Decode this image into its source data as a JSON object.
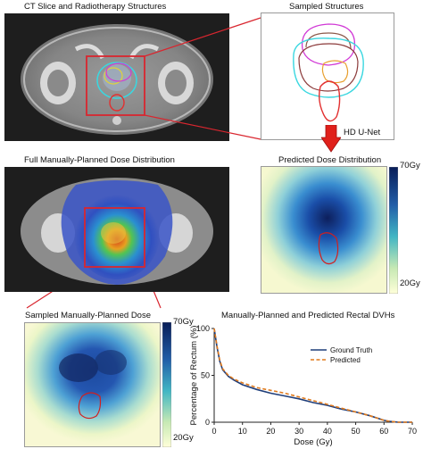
{
  "panels": {
    "ct_title": "CT Slice and Radiotherapy Structures",
    "sampled_title": "Sampled Structures",
    "full_dose_title": "Full Manually-Planned Dose Distribution",
    "predicted_title": "Predicted Dose Distribution",
    "sampled_dose_title": "Sampled Manually-Planned Dose",
    "dvh_title": "Manually-Planned and Predicted Rectal DVHs"
  },
  "arrow": {
    "label": "HD U-Net",
    "color": "#e0201b"
  },
  "colorbar_top": {
    "max": "70Gy",
    "min": "20Gy"
  },
  "colorbar_bottom": {
    "max": "70Gy",
    "min": "20Gy"
  },
  "colors": {
    "highlight_box": "#d9262f",
    "ground_truth": "#1f3e7a",
    "predicted": "#e07a1d",
    "rectum_contour": "#d11f1f"
  },
  "chart_data": {
    "type": "line",
    "title": "Manually-Planned and Predicted Rectal DVHs",
    "xlabel": "Dose (Gy)",
    "ylabel": "Percentage of Rectum (%)",
    "xlim": [
      0,
      70
    ],
    "ylim": [
      0,
      100
    ],
    "xticks": [
      "0",
      "10",
      "20",
      "30",
      "40",
      "50",
      "60",
      "70"
    ],
    "yticks": [
      "0",
      "50",
      "100"
    ],
    "legend_position": "top-right",
    "series": [
      {
        "name": "Ground Truth",
        "style": "solid",
        "x": [
          0,
          1,
          2,
          3,
          5,
          7,
          10,
          15,
          20,
          25,
          30,
          35,
          40,
          45,
          50,
          55,
          58,
          60,
          62,
          65,
          70
        ],
        "y": [
          100,
          80,
          65,
          56,
          49,
          45,
          40,
          35,
          31,
          28,
          25,
          21,
          18,
          14,
          11,
          7,
          4,
          2,
          1,
          0,
          0
        ]
      },
      {
        "name": "Predicted",
        "style": "dashed",
        "x": [
          0,
          1,
          2,
          3,
          5,
          7,
          10,
          15,
          20,
          25,
          30,
          35,
          40,
          45,
          50,
          55,
          58,
          60,
          62,
          65,
          70
        ],
        "y": [
          100,
          81,
          66,
          57,
          50,
          46,
          42,
          37,
          34,
          31,
          27,
          23,
          19,
          15,
          11,
          7,
          4,
          2,
          1,
          0,
          0
        ]
      }
    ]
  }
}
